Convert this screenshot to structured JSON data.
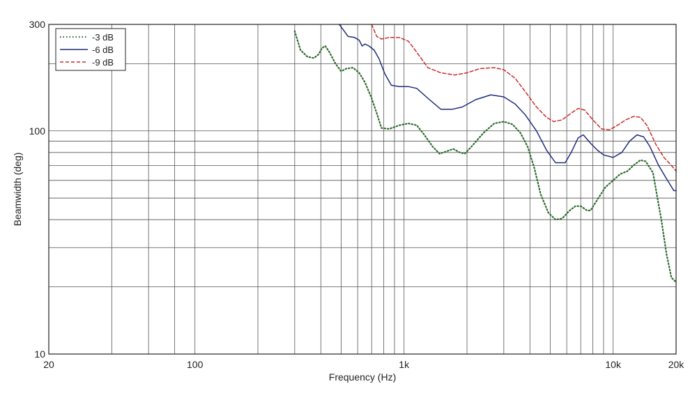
{
  "chart_data": {
    "type": "line",
    "xlabel": "Frequency (Hz)",
    "ylabel": "Beamwidth (deg)",
    "x_scale": "log",
    "y_scale": "log",
    "xlim": [
      20,
      20000
    ],
    "ylim": [
      10,
      300
    ],
    "grid": true,
    "legend_position": "top-left",
    "x_tick_labels": [
      {
        "value": 20,
        "label": "20"
      },
      {
        "value": 100,
        "label": "100"
      },
      {
        "value": 1000,
        "label": "1k"
      },
      {
        "value": 10000,
        "label": "10k"
      },
      {
        "value": 20000,
        "label": "20k"
      }
    ],
    "y_tick_labels": [
      {
        "value": 10,
        "label": "10"
      },
      {
        "value": 100,
        "label": "100"
      },
      {
        "value": 300,
        "label": "300"
      }
    ],
    "x_grid_values": [
      40,
      60,
      80,
      100,
      200,
      300,
      400,
      500,
      600,
      700,
      800,
      900,
      1000,
      2000,
      3000,
      4000,
      5000,
      6000,
      7000,
      8000,
      9000,
      10000,
      20000
    ],
    "y_grid_values": [
      20,
      30,
      40,
      50,
      60,
      70,
      80,
      90,
      100,
      200,
      300
    ],
    "series": [
      {
        "name": "-3 dB",
        "color": "#2e6b2e",
        "style": "dotted",
        "points": [
          [
            300,
            280
          ],
          [
            320,
            230
          ],
          [
            345,
            215
          ],
          [
            370,
            212
          ],
          [
            390,
            220
          ],
          [
            405,
            235
          ],
          [
            420,
            240
          ],
          [
            440,
            225
          ],
          [
            470,
            200
          ],
          [
            500,
            185
          ],
          [
            530,
            190
          ],
          [
            570,
            192
          ],
          [
            610,
            182
          ],
          [
            650,
            165
          ],
          [
            700,
            140
          ],
          [
            740,
            120
          ],
          [
            780,
            103
          ],
          [
            850,
            102
          ],
          [
            950,
            106
          ],
          [
            1050,
            108
          ],
          [
            1150,
            106
          ],
          [
            1250,
            96
          ],
          [
            1370,
            85
          ],
          [
            1480,
            79
          ],
          [
            1600,
            81
          ],
          [
            1720,
            83
          ],
          [
            1850,
            80
          ],
          [
            1950,
            79
          ],
          [
            2100,
            85
          ],
          [
            2400,
            98
          ],
          [
            2700,
            108
          ],
          [
            3000,
            110
          ],
          [
            3300,
            107
          ],
          [
            3600,
            98
          ],
          [
            3900,
            85
          ],
          [
            4200,
            68
          ],
          [
            4500,
            52
          ],
          [
            4900,
            43
          ],
          [
            5300,
            40
          ],
          [
            5700,
            40.5
          ],
          [
            6200,
            44
          ],
          [
            6600,
            46
          ],
          [
            7000,
            46
          ],
          [
            7500,
            44
          ],
          [
            7800,
            44
          ],
          [
            8500,
            50
          ],
          [
            9200,
            56
          ],
          [
            10000,
            60
          ],
          [
            10800,
            64
          ],
          [
            11700,
            66
          ],
          [
            12500,
            70
          ],
          [
            13500,
            74
          ],
          [
            14300,
            73
          ],
          [
            15500,
            65
          ],
          [
            17000,
            40
          ],
          [
            18000,
            28
          ],
          [
            19000,
            22
          ],
          [
            20000,
            21
          ]
        ]
      },
      {
        "name": "-6 dB",
        "color": "#1f2c7a",
        "style": "solid",
        "points": [
          [
            490,
            300
          ],
          [
            510,
            285
          ],
          [
            540,
            265
          ],
          [
            580,
            262
          ],
          [
            610,
            255
          ],
          [
            630,
            240
          ],
          [
            650,
            245
          ],
          [
            680,
            240
          ],
          [
            720,
            230
          ],
          [
            760,
            210
          ],
          [
            810,
            180
          ],
          [
            870,
            160
          ],
          [
            950,
            158
          ],
          [
            1050,
            158
          ],
          [
            1150,
            155
          ],
          [
            1300,
            140
          ],
          [
            1500,
            125
          ],
          [
            1700,
            125
          ],
          [
            1900,
            128
          ],
          [
            2200,
            138
          ],
          [
            2600,
            145
          ],
          [
            3000,
            142
          ],
          [
            3400,
            132
          ],
          [
            3800,
            118
          ],
          [
            4300,
            100
          ],
          [
            4800,
            82
          ],
          [
            5300,
            72
          ],
          [
            5900,
            72
          ],
          [
            6300,
            80
          ],
          [
            6800,
            93
          ],
          [
            7200,
            96
          ],
          [
            7800,
            88
          ],
          [
            8400,
            82
          ],
          [
            9000,
            78
          ],
          [
            10000,
            76
          ],
          [
            11000,
            80
          ],
          [
            12000,
            90
          ],
          [
            13000,
            96
          ],
          [
            14000,
            94
          ],
          [
            15000,
            85
          ],
          [
            16500,
            70
          ],
          [
            18000,
            61
          ],
          [
            19500,
            54
          ],
          [
            20000,
            54
          ]
        ]
      },
      {
        "name": "-9 dB",
        "color": "#cc2a2a",
        "style": "dashed",
        "points": [
          [
            700,
            300
          ],
          [
            740,
            265
          ],
          [
            780,
            258
          ],
          [
            850,
            262
          ],
          [
            950,
            262
          ],
          [
            1050,
            252
          ],
          [
            1150,
            225
          ],
          [
            1300,
            192
          ],
          [
            1500,
            182
          ],
          [
            1750,
            178
          ],
          [
            2000,
            182
          ],
          [
            2300,
            190
          ],
          [
            2700,
            192
          ],
          [
            3000,
            188
          ],
          [
            3400,
            172
          ],
          [
            3800,
            150
          ],
          [
            4300,
            128
          ],
          [
            4800,
            115
          ],
          [
            5200,
            110
          ],
          [
            5700,
            112
          ],
          [
            6300,
            120
          ],
          [
            6800,
            126
          ],
          [
            7300,
            124
          ],
          [
            8000,
            112
          ],
          [
            8800,
            102
          ],
          [
            9600,
            101
          ],
          [
            10500,
            106
          ],
          [
            11500,
            112
          ],
          [
            12500,
            116
          ],
          [
            13500,
            115
          ],
          [
            14500,
            106
          ],
          [
            16000,
            87
          ],
          [
            17500,
            76
          ],
          [
            19000,
            70
          ],
          [
            20000,
            66
          ]
        ]
      }
    ]
  }
}
